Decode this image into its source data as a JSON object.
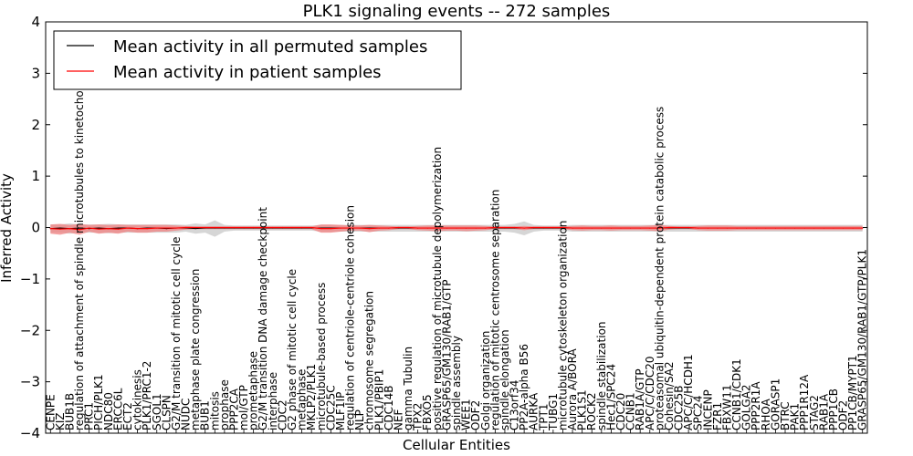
{
  "chart_data": {
    "type": "line",
    "title": "PLK1 signaling events -- 272 samples",
    "xlabel": "Cellular Entities",
    "ylabel": "Inferred Activity",
    "ylim": [
      -4,
      4
    ],
    "yticks": [
      -4,
      -3,
      -2,
      -1,
      0,
      1,
      2,
      3,
      4
    ],
    "legend": {
      "placement": "top-left",
      "entries": [
        {
          "label": "Mean activity in all permuted samples",
          "color": "#000000"
        },
        {
          "label": "Mean activity in patient samples",
          "color": "#ff0000"
        }
      ]
    },
    "categories": [
      "CENPE",
      "KIZ",
      "BUB1B",
      "regulation of attachment of spindle microtubules to kinetochore",
      "PRC1",
      "PICH/PLK1",
      "NDC80",
      "ERCC6L",
      "ECT2",
      "cytokinesis",
      "PLK1/PRC1-2",
      "SGOL1",
      "CLSPN",
      "G2/M transition of mitotic cell cycle",
      "NUDC",
      "metaphase plate congression",
      "BUB1",
      "mitosis",
      "prophase",
      "PPP2CA",
      "mol/GTP",
      "prometaphase",
      "G2/M transition DNA damage checkpoint",
      "interphase",
      "CDC2",
      "G2 phase of mitotic cell cycle",
      "metaphase",
      "MKLP2/PLK1",
      "microtubule-based process",
      "CDC25C",
      "MLF1IP",
      "regulation of centriole-centriole cohesion",
      "NLP",
      "chromosome segregation",
      "PLK1/PBIP1",
      "CDC14B",
      "NEF",
      "gamma Tubulin",
      "TPX2",
      "FBXO5",
      "positive regulation of microtubule depolymerization",
      "GRASP65/GM130/RAB1/GTP",
      "spindle assembly",
      "WEE1",
      "ODF2",
      "Golgi organization",
      "regulation of mitotic centrosome separation",
      "spindle elongation",
      "C13orf34",
      "PP2A-alpha B56",
      "AURKA",
      "TPT1",
      "TUBG1",
      "microtubule cytoskeleton organization",
      "Aurora A/BORA",
      "PLK1S1",
      "ROCK2",
      "spindle stabilization",
      "Hec1/SPC24",
      "CDC20",
      "CCNB1",
      "RAB1A/GTP",
      "APC/C/CDC20",
      "proteasomal ubiquitin-dependent protein catabolic process",
      "Cohesin/SA2",
      "CDC25B",
      "APC/C/HCDH1",
      "SPC24",
      "INCENP",
      "FZR1",
      "FBXW11",
      "CCNB1/CDK1",
      "GOLGA2",
      "PPP2R1A",
      "RHOA",
      "GORASP1",
      "BTRC",
      "PAK1",
      "PPP1R12A",
      "STAG2",
      "RAB1A",
      "PPP1CB",
      "ODF2",
      "PP1CB/MYPT1",
      "GRASP65/GM130/RAB1/GTP/PLK1"
    ],
    "series": [
      {
        "name": "Mean activity in all permuted samples",
        "color": "#000000",
        "values": [
          -0.02,
          -0.01,
          -0.02,
          -0.01,
          -0.02,
          -0.01,
          -0.02,
          -0.01,
          -0.01,
          -0.02,
          -0.01,
          -0.01,
          -0.02,
          -0.01,
          -0.01,
          -0.02,
          -0.01,
          -0.01,
          -0.01,
          -0.01,
          -0.01,
          -0.01,
          -0.01,
          -0.01,
          -0.01,
          -0.01,
          -0.01,
          -0.01,
          -0.01,
          -0.01,
          -0.01,
          -0.01,
          -0.01,
          -0.01,
          -0.01,
          -0.01,
          -0.01,
          -0.01,
          -0.01,
          -0.01,
          -0.01,
          -0.01,
          -0.01,
          -0.01,
          -0.01,
          -0.01,
          -0.01,
          -0.01,
          -0.01,
          -0.01,
          -0.01,
          -0.01,
          -0.01,
          -0.01,
          -0.01,
          -0.01,
          -0.01,
          -0.01,
          -0.01,
          -0.01,
          -0.01,
          -0.01,
          -0.01,
          -0.01,
          -0.01,
          -0.01,
          -0.01,
          -0.01,
          -0.01,
          -0.01,
          -0.01,
          -0.01,
          -0.01,
          -0.01,
          -0.01,
          -0.01,
          -0.01,
          -0.01,
          -0.01,
          -0.01,
          -0.01,
          -0.01,
          -0.01,
          -0.01,
          -0.01
        ]
      },
      {
        "name": "Mean activity in patient samples",
        "color": "#ff0000",
        "values": [
          -0.02,
          -0.03,
          -0.02,
          -0.04,
          -0.01,
          -0.03,
          -0.02,
          -0.03,
          -0.01,
          -0.02,
          -0.02,
          -0.01,
          -0.01,
          -0.01,
          0.0,
          0.0,
          0.0,
          0.0,
          0.0,
          0.0,
          0.0,
          0.0,
          0.0,
          0.0,
          0.0,
          0.0,
          0.0,
          0.0,
          -0.02,
          -0.02,
          -0.01,
          -0.01,
          -0.01,
          -0.02,
          -0.01,
          -0.01,
          0.0,
          0.0,
          -0.01,
          -0.01,
          -0.01,
          -0.01,
          -0.01,
          -0.01,
          -0.01,
          -0.01,
          0.0,
          0.0,
          0.0,
          -0.01,
          0.0,
          0.0,
          0.0,
          0.0,
          -0.01,
          -0.01,
          -0.01,
          -0.01,
          -0.01,
          -0.01,
          -0.01,
          -0.01,
          -0.01,
          -0.01,
          0.0,
          0.0,
          0.0,
          -0.01,
          -0.01,
          -0.01,
          -0.01,
          -0.01,
          -0.01,
          -0.01,
          -0.01,
          -0.01,
          -0.01,
          -0.01,
          -0.01,
          -0.01,
          -0.01,
          -0.01,
          -0.01,
          -0.01,
          -0.01
        ]
      }
    ],
    "bands": [
      {
        "name": "permuted spread",
        "color": "#bbbbbb",
        "lower": [
          -0.1,
          -0.1,
          -0.12,
          -0.1,
          -0.1,
          -0.1,
          -0.11,
          -0.1,
          -0.1,
          -0.1,
          -0.1,
          -0.1,
          -0.1,
          -0.1,
          -0.08,
          -0.12,
          -0.1,
          -0.18,
          -0.08,
          -0.06,
          -0.06,
          -0.06,
          -0.06,
          -0.06,
          -0.06,
          -0.06,
          -0.06,
          -0.06,
          -0.08,
          -0.08,
          -0.08,
          -0.08,
          -0.08,
          -0.08,
          -0.08,
          -0.08,
          -0.08,
          -0.08,
          -0.08,
          -0.08,
          -0.08,
          -0.08,
          -0.08,
          -0.08,
          -0.08,
          -0.08,
          -0.08,
          -0.08,
          -0.1,
          -0.15,
          -0.08,
          -0.06,
          -0.06,
          -0.06,
          -0.08,
          -0.08,
          -0.08,
          -0.08,
          -0.08,
          -0.08,
          -0.08,
          -0.08,
          -0.08,
          -0.08,
          -0.08,
          -0.08,
          -0.08,
          -0.08,
          -0.08,
          -0.08,
          -0.08,
          -0.08,
          -0.08,
          -0.08,
          -0.08,
          -0.08,
          -0.08,
          -0.08,
          -0.08,
          -0.08,
          -0.08,
          -0.08,
          -0.08,
          -0.08,
          -0.08
        ],
        "upper": [
          0.06,
          0.06,
          0.08,
          0.06,
          0.06,
          0.06,
          0.07,
          0.06,
          0.06,
          0.06,
          0.06,
          0.06,
          0.06,
          0.06,
          0.05,
          0.08,
          0.06,
          0.14,
          0.05,
          0.04,
          0.04,
          0.04,
          0.04,
          0.04,
          0.04,
          0.04,
          0.04,
          0.04,
          0.05,
          0.05,
          0.05,
          0.05,
          0.05,
          0.05,
          0.05,
          0.05,
          0.05,
          0.05,
          0.05,
          0.05,
          0.05,
          0.05,
          0.05,
          0.05,
          0.05,
          0.05,
          0.05,
          0.05,
          0.07,
          0.12,
          0.05,
          0.04,
          0.04,
          0.04,
          0.05,
          0.05,
          0.05,
          0.05,
          0.05,
          0.05,
          0.05,
          0.05,
          0.05,
          0.05,
          0.05,
          0.05,
          0.05,
          0.05,
          0.05,
          0.05,
          0.05,
          0.05,
          0.05,
          0.05,
          0.05,
          0.05,
          0.05,
          0.05,
          0.05,
          0.05,
          0.05,
          0.05,
          0.05,
          0.05,
          0.05
        ]
      },
      {
        "name": "patient spread",
        "color": "#f08080",
        "lower": [
          -0.12,
          -0.14,
          -0.1,
          -0.14,
          -0.08,
          -0.12,
          -0.1,
          -0.12,
          -0.08,
          -0.1,
          -0.1,
          -0.08,
          -0.08,
          -0.06,
          -0.04,
          -0.03,
          -0.03,
          -0.03,
          -0.03,
          -0.03,
          -0.03,
          -0.03,
          -0.03,
          -0.03,
          -0.03,
          -0.03,
          -0.03,
          -0.03,
          -0.1,
          -0.1,
          -0.08,
          -0.06,
          -0.06,
          -0.09,
          -0.06,
          -0.05,
          -0.03,
          -0.03,
          -0.05,
          -0.06,
          -0.07,
          -0.06,
          -0.06,
          -0.07,
          -0.06,
          -0.05,
          -0.03,
          -0.03,
          -0.03,
          -0.05,
          -0.03,
          -0.03,
          -0.03,
          -0.03,
          -0.05,
          -0.06,
          -0.05,
          -0.05,
          -0.06,
          -0.05,
          -0.05,
          -0.05,
          -0.06,
          -0.07,
          -0.04,
          -0.03,
          -0.03,
          -0.05,
          -0.06,
          -0.06,
          -0.06,
          -0.05,
          -0.05,
          -0.05,
          -0.05,
          -0.05,
          -0.05,
          -0.05,
          -0.05,
          -0.05,
          -0.05,
          -0.05,
          -0.05,
          -0.05,
          -0.05
        ],
        "upper": [
          0.06,
          0.07,
          0.05,
          0.07,
          0.05,
          0.06,
          0.05,
          0.06,
          0.05,
          0.05,
          0.05,
          0.05,
          0.05,
          0.04,
          0.03,
          0.02,
          0.02,
          0.02,
          0.02,
          0.02,
          0.02,
          0.02,
          0.02,
          0.02,
          0.02,
          0.02,
          0.02,
          0.02,
          0.06,
          0.06,
          0.05,
          0.04,
          0.04,
          0.05,
          0.04,
          0.03,
          0.02,
          0.02,
          0.03,
          0.04,
          0.04,
          0.04,
          0.04,
          0.04,
          0.04,
          0.03,
          0.02,
          0.02,
          0.02,
          0.03,
          0.02,
          0.02,
          0.02,
          0.02,
          0.03,
          0.04,
          0.03,
          0.03,
          0.04,
          0.03,
          0.03,
          0.03,
          0.04,
          0.05,
          0.03,
          0.02,
          0.02,
          0.03,
          0.04,
          0.04,
          0.04,
          0.03,
          0.03,
          0.03,
          0.03,
          0.03,
          0.03,
          0.03,
          0.03,
          0.03,
          0.03,
          0.03,
          0.03,
          0.03,
          0.03
        ]
      }
    ]
  }
}
